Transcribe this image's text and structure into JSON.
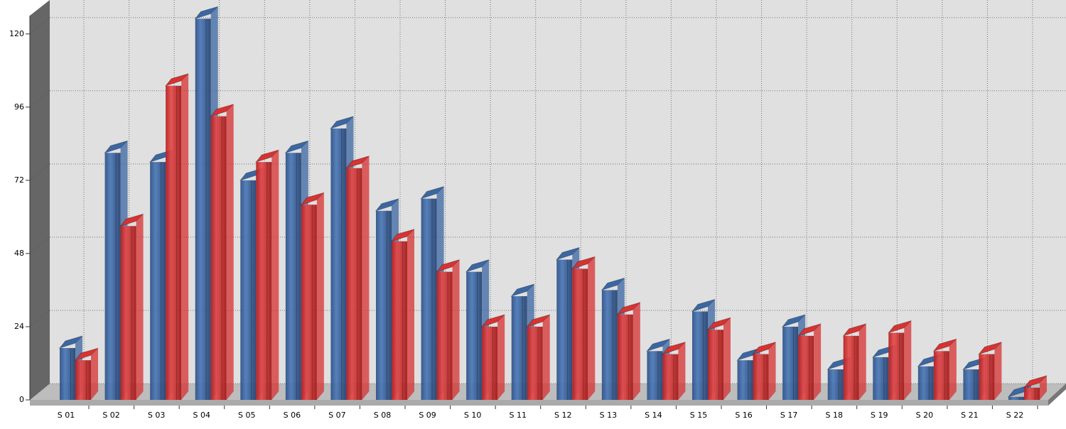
{
  "chart_data": {
    "type": "bar3d",
    "categories": [
      "S 01",
      "S 02",
      "S 03",
      "S 04",
      "S 05",
      "S 06",
      "S 07",
      "S 08",
      "S 09",
      "S 10",
      "S 11",
      "S 12",
      "S 13",
      "S 14",
      "S 15",
      "S 16",
      "S 17",
      "S 18",
      "S 19",
      "S 20",
      "S 21",
      "S 22"
    ],
    "series": [
      {
        "color": "#3b67a3",
        "values": [
          17,
          81,
          78,
          125,
          72,
          81,
          89,
          62,
          66,
          42,
          34,
          46,
          36,
          16,
          29,
          13,
          24,
          10,
          14,
          11,
          10,
          1
        ]
      },
      {
        "color": "#d83232",
        "values": [
          13,
          57,
          103,
          93,
          78,
          64,
          76,
          52,
          42,
          24,
          24,
          43,
          28,
          15,
          23,
          15,
          21,
          21,
          22,
          16,
          15,
          4
        ]
      }
    ],
    "ylim": [
      0,
      126
    ],
    "yticks": [
      0,
      24,
      48,
      72,
      96,
      120
    ],
    "grid": true
  }
}
